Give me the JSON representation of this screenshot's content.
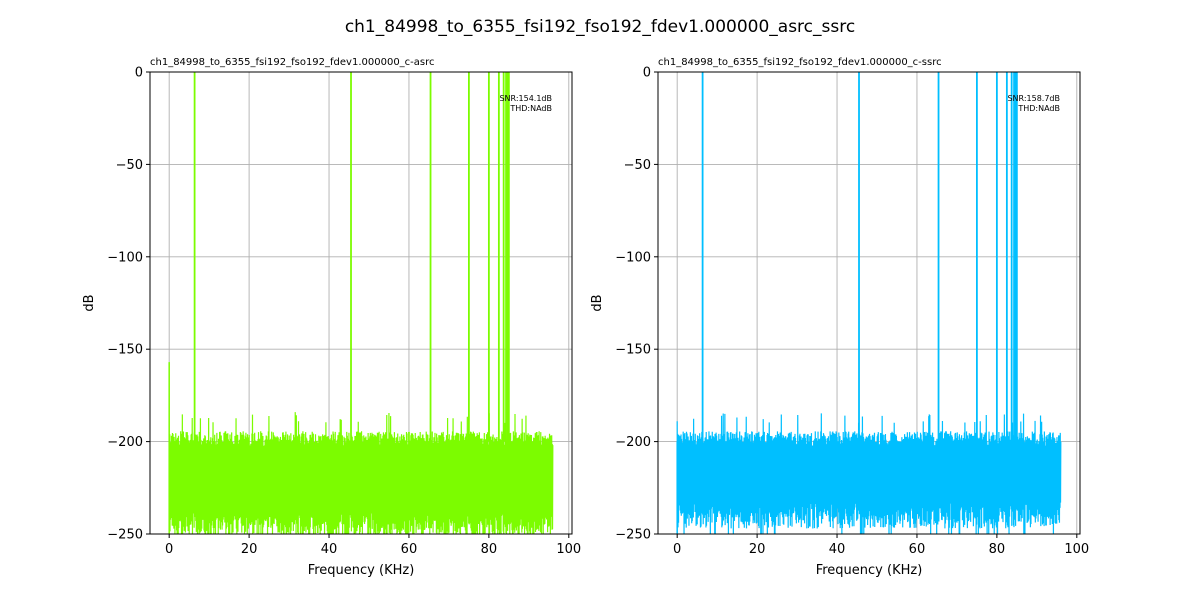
{
  "figure": {
    "title": "ch1_84998_to_6355_fsi192_fso192_fdev1.000000_asrc_ssrc"
  },
  "chart_data": [
    {
      "type": "line",
      "title": "ch1_84998_to_6355_fsi192_fso192_fdev1.000000_c-asrc",
      "xlabel": "Frequency (KHz)",
      "ylabel": "dB",
      "xlim": [
        -4.8,
        100.8
      ],
      "ylim": [
        -250,
        0
      ],
      "xticks": [
        0,
        20,
        40,
        60,
        80,
        100
      ],
      "yticks": [
        0,
        -50,
        -100,
        -150,
        -200,
        -250
      ],
      "grid": true,
      "color": "#7cfc00",
      "annotations": [
        "SNR:154.1dB",
        "THD:NAdB"
      ],
      "annotation_position": "top-right",
      "noise_floor": {
        "x_start": 0,
        "x_end": 96,
        "top_db": -200,
        "bottom_db": -245,
        "peak_max_db": -190
      },
      "spike_at_zero_db": -157,
      "tones": [
        {
          "x": 6.36,
          "y": 0
        },
        {
          "x": 45.5,
          "y": 0
        },
        {
          "x": 65.4,
          "y": 0
        },
        {
          "x": 75.0,
          "y": 0
        },
        {
          "x": 80.0,
          "y": 0
        },
        {
          "x": 82.5,
          "y": 0
        },
        {
          "x": 83.7,
          "y": 0
        },
        {
          "x": 84.3,
          "y": 0
        },
        {
          "x": 84.7,
          "y": 0
        },
        {
          "x": 85.0,
          "y": 0
        }
      ]
    },
    {
      "type": "line",
      "title": "ch1_84998_to_6355_fsi192_fso192_fdev1.000000_c-ssrc",
      "xlabel": "Frequency (KHz)",
      "ylabel": "dB",
      "xlim": [
        -4.8,
        100.8
      ],
      "ylim": [
        -250,
        0
      ],
      "xticks": [
        0,
        20,
        40,
        60,
        80,
        100
      ],
      "yticks": [
        0,
        -50,
        -100,
        -150,
        -200,
        -250
      ],
      "grid": true,
      "color": "#00bfff",
      "annotations": [
        "SNR:158.7dB",
        "THD:NAdB"
      ],
      "annotation_position": "top-right",
      "noise_floor": {
        "x_start": 0,
        "x_end": 96,
        "top_db": -200,
        "bottom_db": -240,
        "peak_max_db": -190
      },
      "spike_at_zero_db": -200,
      "tones": [
        {
          "x": 6.36,
          "y": 0
        },
        {
          "x": 45.5,
          "y": 0
        },
        {
          "x": 65.4,
          "y": 0
        },
        {
          "x": 75.0,
          "y": 0
        },
        {
          "x": 80.0,
          "y": 0
        },
        {
          "x": 82.5,
          "y": 0
        },
        {
          "x": 83.7,
          "y": 0
        },
        {
          "x": 84.3,
          "y": 0
        },
        {
          "x": 84.7,
          "y": 0
        },
        {
          "x": 85.0,
          "y": 0
        }
      ]
    }
  ]
}
